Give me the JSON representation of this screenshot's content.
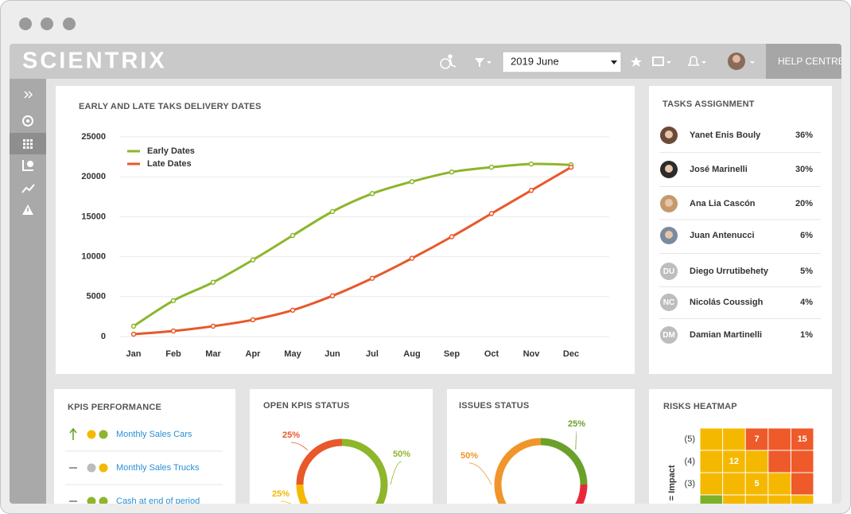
{
  "header": {
    "logo": "SCIENTRIX",
    "date_select": "2019 June",
    "help": "HELP CENTRE"
  },
  "chart_data": [
    {
      "type": "line",
      "title": "EARLY AND LATE TAKS DELIVERY DATES",
      "categories": [
        "Jan",
        "Feb",
        "Mar",
        "Apr",
        "May",
        "Jun",
        "Jul",
        "Aug",
        "Sep",
        "Oct",
        "Nov",
        "Dec"
      ],
      "series": [
        {
          "name": "Early Dates",
          "color": "#8db62a",
          "values": [
            1300,
            4500,
            6800,
            9600,
            12650,
            15650,
            17900,
            19400,
            20600,
            21200,
            21600,
            21500
          ]
        },
        {
          "name": "Late Dates",
          "color": "#e8582a",
          "values": [
            300,
            700,
            1300,
            2100,
            3300,
            5100,
            7300,
            9800,
            12500,
            15400,
            18300,
            21200
          ]
        }
      ],
      "ylim": [
        0,
        25000
      ],
      "yticks": [
        0,
        5000,
        10000,
        15000,
        20000,
        25000
      ],
      "grid": true,
      "legend": "top-left"
    },
    {
      "type": "pie",
      "donut": true,
      "title": "OPEN KPIS STATUS",
      "values": [
        50,
        25,
        25
      ],
      "value_labels": [
        "50%",
        "25%",
        "25%"
      ],
      "colors": [
        "#8db62a",
        "#f5b800",
        "#e8582a"
      ]
    },
    {
      "type": "pie",
      "donut": true,
      "title": "ISSUES STATUS",
      "values": [
        25,
        25,
        50
      ],
      "value_labels": [
        "25%",
        null,
        "50%"
      ],
      "colors": [
        "#6aa12a",
        "#e8283a",
        "#f0952a"
      ]
    },
    {
      "type": "heatmap",
      "title": "RISKS HEATMAP",
      "ylabel": "Y = Impact",
      "row_labels": [
        "(5)",
        "(4)",
        "(3)",
        null
      ],
      "values": [
        [
          null,
          null,
          7,
          null,
          15
        ],
        [
          null,
          12,
          null,
          null,
          null
        ],
        [
          null,
          null,
          5,
          null,
          null
        ],
        [
          null,
          null,
          null,
          null,
          null
        ]
      ],
      "colors": [
        [
          "#f5b800",
          "#f5b800",
          "#ee5a2a",
          "#ee5a2a",
          "#ee5a2a"
        ],
        [
          "#f5b800",
          "#f5b800",
          "#f5b800",
          "#ee5a2a",
          "#ee5a2a"
        ],
        [
          "#f5b800",
          "#f5b800",
          "#f5b800",
          "#f5b800",
          "#ee5a2a"
        ],
        [
          "#7fb02a",
          "#f5b800",
          "#f5b800",
          "#f5b800",
          "#f5b800"
        ]
      ]
    }
  ],
  "tasks": {
    "title": "TASKS ASSIGNMENT",
    "rows": [
      {
        "name": "Yanet Enis Bouly",
        "percent": "36%"
      },
      {
        "name": "José Marinelli",
        "percent": "30%"
      },
      {
        "name": "Ana Lia Cascón",
        "percent": "20%"
      },
      {
        "name": "Juan Antenucci",
        "percent": "6%"
      },
      {
        "name": "Diego Urrutibehety",
        "percent": "5%",
        "initials": "DU"
      },
      {
        "name": "Nicolás Coussigh",
        "percent": "4%",
        "initials": "NC"
      },
      {
        "name": "Damian Martinelli",
        "percent": "1%",
        "initials": "DM"
      }
    ]
  },
  "kpis": {
    "title": "KPIS PERFORMANCE",
    "rows": [
      {
        "name": "Monthly Sales Cars",
        "trend": "up",
        "dots": [
          "#f5b800",
          "#8db62a"
        ]
      },
      {
        "name": "Monthly Sales Trucks",
        "trend": "flat",
        "dots": [
          "#bbbbbb",
          "#f5b800"
        ]
      },
      {
        "name": "Cash at end of period",
        "trend": "flat",
        "dots": [
          "#8db62a",
          "#8db62a"
        ]
      }
    ]
  }
}
